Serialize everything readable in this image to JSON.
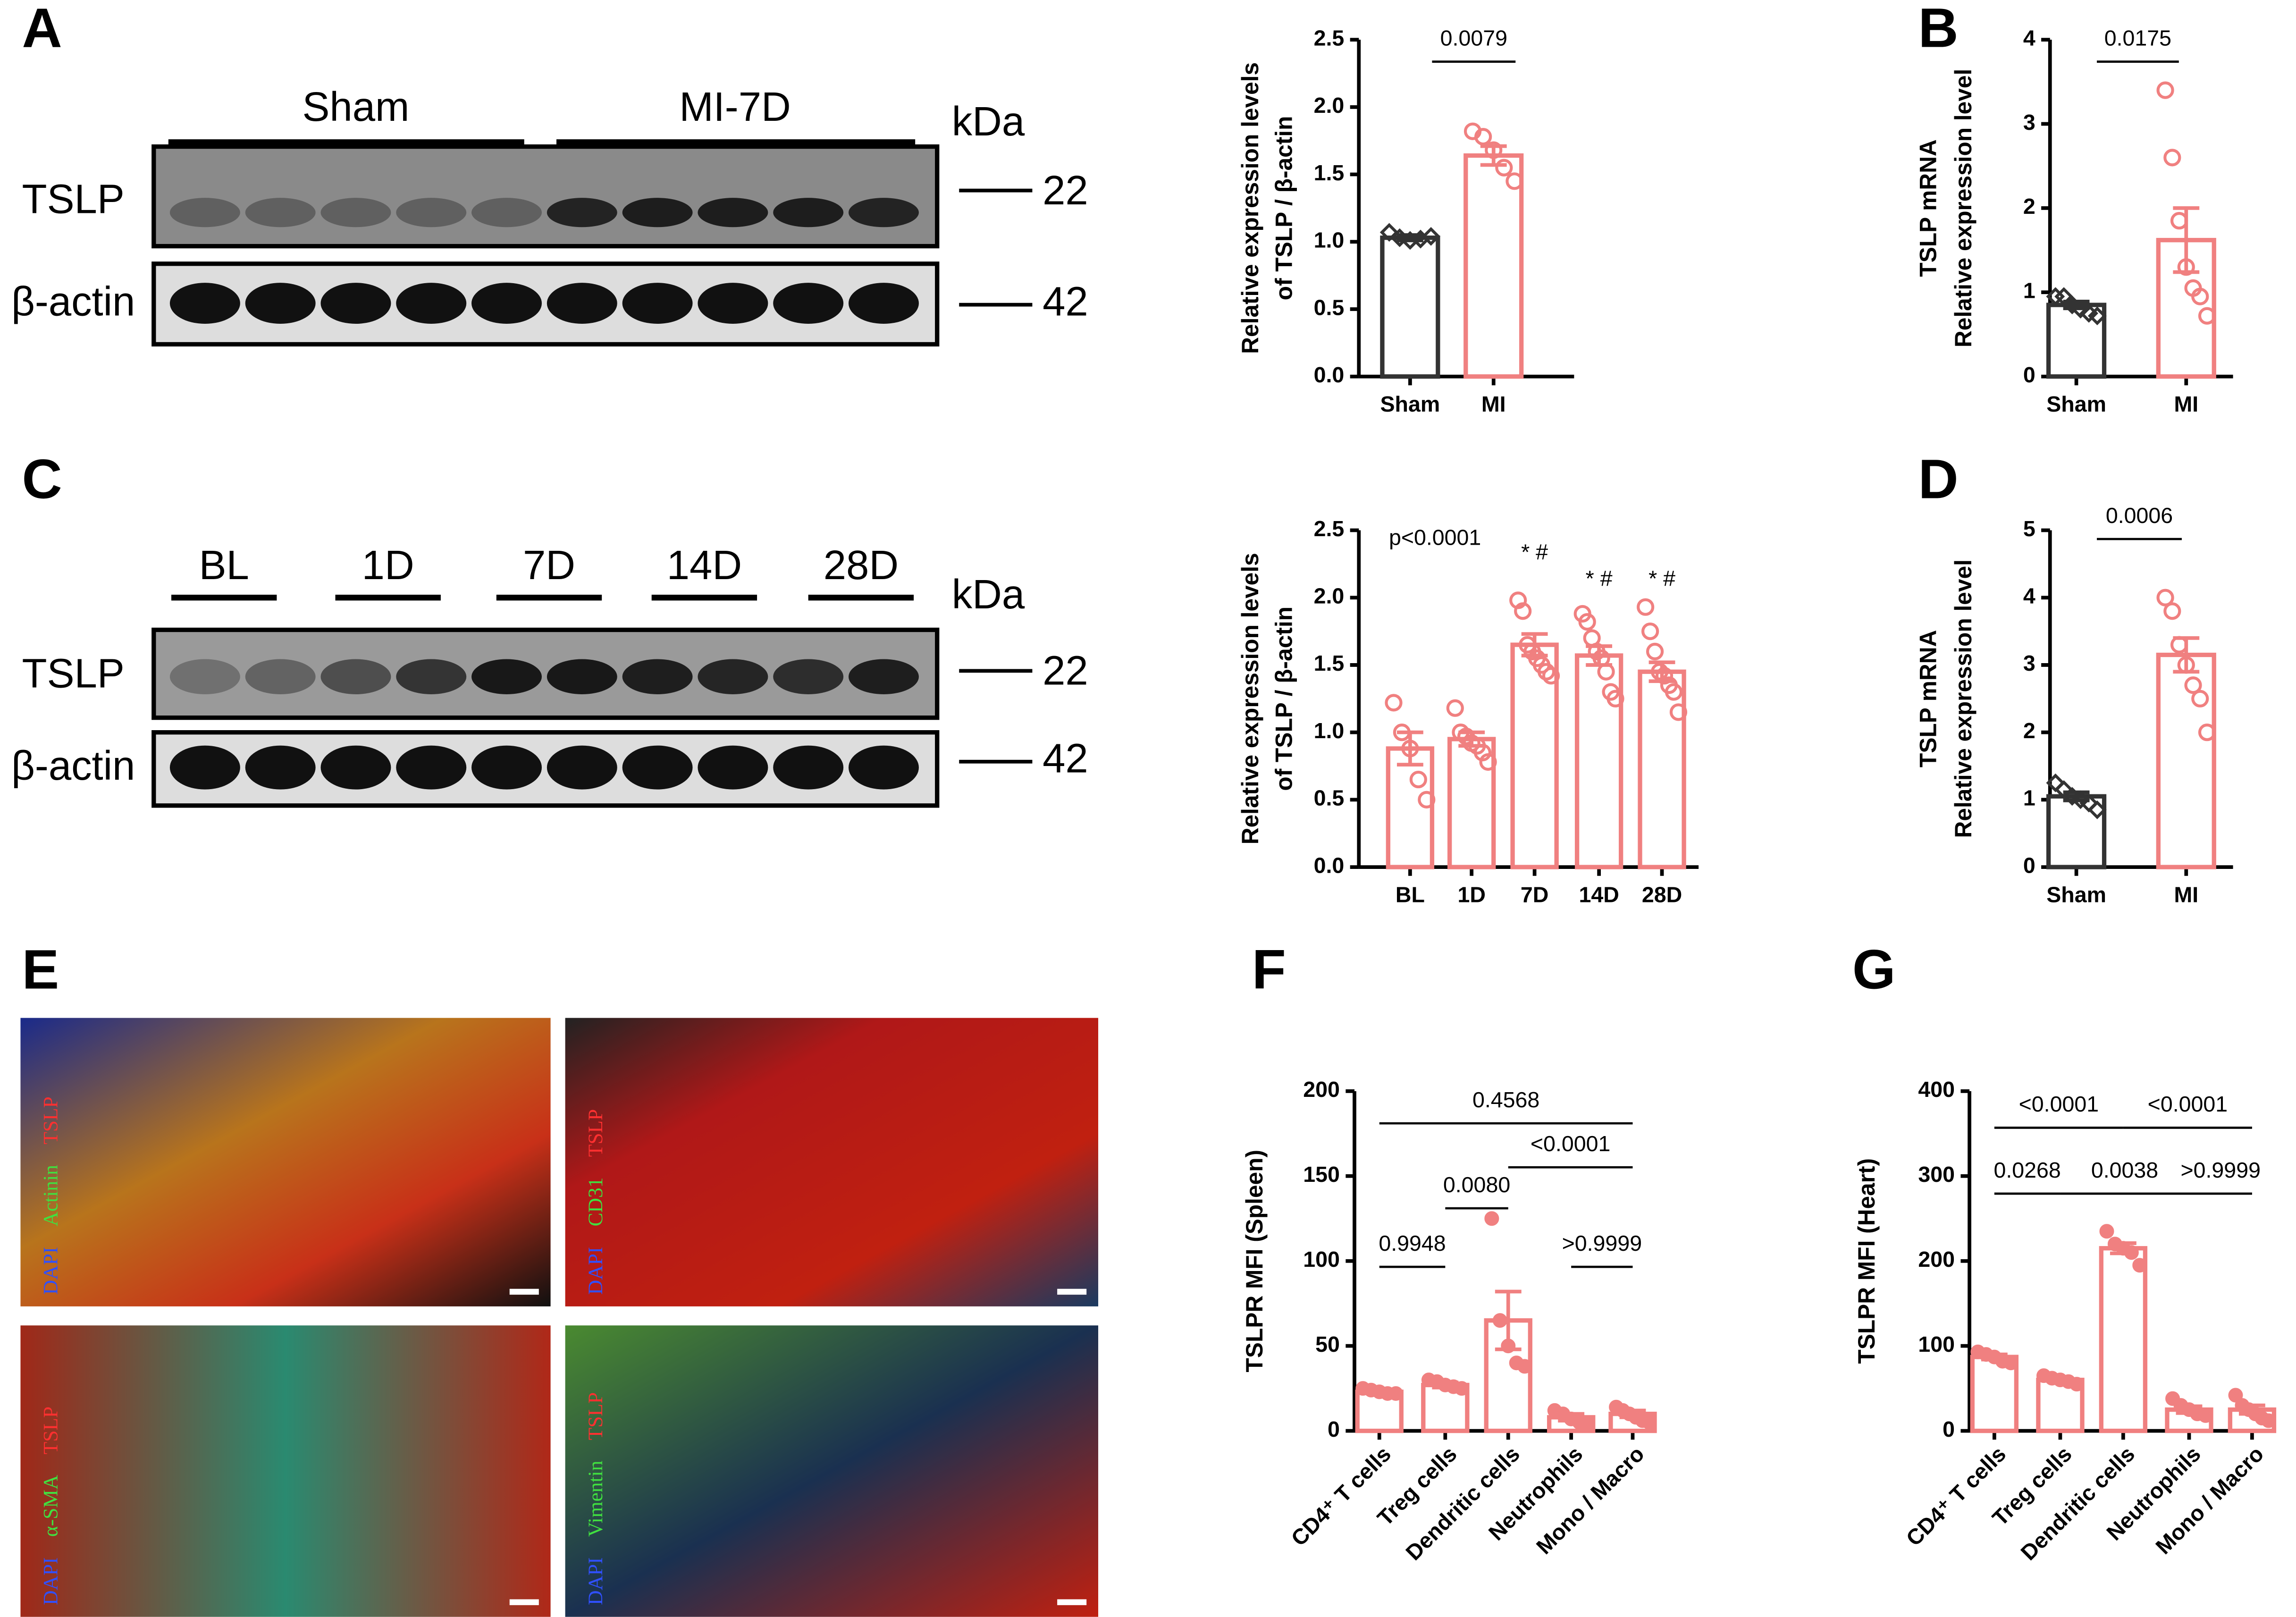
{
  "panels": [
    "A",
    "B",
    "C",
    "D",
    "E",
    "F",
    "G"
  ],
  "blot_a": {
    "groups": [
      "Sham",
      "MI-7D"
    ],
    "unit": "kDa",
    "rows": [
      {
        "protein": "TSLP",
        "size": "22"
      },
      {
        "protein": "β-actin",
        "size": "42"
      }
    ]
  },
  "blot_c": {
    "groups": [
      "BL",
      "1D",
      "7D",
      "14D",
      "28D"
    ],
    "unit": "kDa",
    "rows": [
      {
        "protein": "TSLP",
        "size": "22"
      },
      {
        "protein": "β-actin",
        "size": "42"
      }
    ]
  },
  "if_images": [
    {
      "labels": [
        "DAPI",
        "Actinin",
        "TSLP"
      ]
    },
    {
      "labels": [
        "DAPI",
        "CD31",
        "TSLP"
      ]
    },
    {
      "labels": [
        "DAPI",
        "α-SMA",
        "TSLP"
      ]
    },
    {
      "labels": [
        "DAPI",
        "Vimentin",
        "TSLP"
      ]
    }
  ],
  "chart_data": [
    {
      "type": "bar",
      "ylabel": [
        "Relative expression levels",
        "of TSLP / β-actin"
      ],
      "categories": [
        "Sham",
        "MI"
      ],
      "colors": [
        "#333333",
        "#f08080"
      ],
      "values": [
        1.03,
        1.64
      ],
      "errors": [
        0.02,
        0.07
      ],
      "points": [
        [
          1.07,
          1.03,
          1.01,
          1.02,
          1.04
        ],
        [
          1.82,
          1.78,
          1.68,
          1.55,
          1.45
        ]
      ],
      "ylim": [
        0,
        2.5
      ],
      "yticks": [
        {
          "value": 0,
          "label": "0.0"
        },
        0.5,
        {
          "value": 1,
          "label": "1.0"
        },
        1.5,
        {
          "value": 2,
          "label": "2.0"
        },
        2.5
      ],
      "annotations": [
        "0.0079"
      ]
    },
    {
      "type": "bar",
      "ylabel": [
        "TSLP mRNA",
        "Relative expression level"
      ],
      "categories": [
        "Sham",
        "MI"
      ],
      "colors": [
        "#333333",
        "#f08080"
      ],
      "values": [
        0.85,
        1.62
      ],
      "errors": [
        0.04,
        0.38
      ],
      "points": [
        [
          0.95,
          0.95,
          0.85,
          0.8,
          0.75,
          0.72
        ],
        [
          3.4,
          2.6,
          1.85,
          1.3,
          1.05,
          0.95,
          0.72
        ]
      ],
      "ylim": [
        0,
        4
      ],
      "yticks": [
        0,
        1,
        2,
        3,
        4
      ],
      "annotations": [
        "0.0175"
      ]
    },
    {
      "type": "bar",
      "ylabel": [
        "Relative expression levels",
        "of TSLP / β-actin"
      ],
      "categories": [
        "BL",
        "1D",
        "7D",
        "14D",
        "28D"
      ],
      "colors": [
        "#f08080",
        "#f08080",
        "#f08080",
        "#f08080",
        "#f08080"
      ],
      "values": [
        0.88,
        0.95,
        1.65,
        1.57,
        1.45
      ],
      "errors": [
        0.12,
        0.05,
        0.08,
        0.07,
        0.07
      ],
      "points": [
        [
          1.22,
          1.0,
          0.88,
          0.65,
          0.5
        ],
        [
          1.18,
          1.0,
          0.97,
          0.92,
          0.9,
          0.85,
          0.78
        ],
        [
          1.98,
          1.9,
          1.65,
          1.6,
          1.55,
          1.5,
          1.45,
          1.42
        ],
        [
          1.88,
          1.82,
          1.7,
          1.6,
          1.55,
          1.45,
          1.3,
          1.25
        ],
        [
          1.93,
          1.75,
          1.6,
          1.45,
          1.42,
          1.35,
          1.3,
          1.15
        ]
      ],
      "ylim": [
        0,
        2.5
      ],
      "yticks": [
        {
          "value": 0,
          "label": "0.0"
        },
        0.5,
        {
          "value": 1,
          "label": "1.0"
        },
        1.5,
        {
          "value": 2,
          "label": "2.0"
        },
        2.5
      ],
      "annotations": [
        "p<0.0001",
        "* #",
        "* #",
        "* #"
      ]
    },
    {
      "type": "bar",
      "ylabel": [
        "TSLP mRNA",
        "Relative expression level"
      ],
      "categories": [
        "Sham",
        "MI"
      ],
      "colors": [
        "#333333",
        "#f08080"
      ],
      "values": [
        1.05,
        3.15
      ],
      "errors": [
        0.06,
        0.25
      ],
      "points": [
        [
          1.25,
          1.15,
          1.05,
          1.0,
          0.95,
          0.85
        ],
        [
          4.0,
          3.8,
          3.3,
          3.0,
          2.7,
          2.5,
          2.0
        ]
      ],
      "ylim": [
        0,
        5
      ],
      "yticks": [
        0,
        1,
        2,
        3,
        4,
        5
      ],
      "annotations": [
        "0.0006"
      ]
    },
    {
      "type": "bar",
      "ylabel": [
        "TSLPR  MFI (Spleen)"
      ],
      "categories": [
        "CD4⁺ T cells",
        "Treg cells",
        "Dendritic cells",
        "Neutrophils",
        "Mono / Macro"
      ],
      "colors": [
        "#f08080",
        "#f08080",
        "#f08080",
        "#f08080",
        "#f08080"
      ],
      "values": [
        23,
        27,
        65,
        8,
        10
      ],
      "errors": [
        1,
        1.5,
        17,
        2,
        2
      ],
      "points": [
        [
          25,
          24,
          23,
          22,
          22
        ],
        [
          30,
          29,
          27,
          26,
          25
        ],
        [
          125,
          65,
          50,
          40,
          38
        ],
        [
          12,
          10,
          7,
          5,
          4
        ],
        [
          14,
          12,
          10,
          8,
          6,
          5
        ]
      ],
      "ylim": [
        0,
        200
      ],
      "yticks": [
        0,
        50,
        100,
        150,
        200
      ],
      "annotations": [
        "0.4568",
        "0.9948",
        "0.0080",
        "<0.0001",
        ">0.9999"
      ]
    },
    {
      "type": "bar",
      "ylabel": [
        "TSLPR  MFI (Heart)"
      ],
      "categories": [
        "CD4⁺ T cells",
        "Treg cells",
        "Dendritic cells",
        "Neutrophils",
        "Mono / Macro"
      ],
      "colors": [
        "#f08080",
        "#f08080",
        "#f08080",
        "#f08080",
        "#f08080"
      ],
      "values": [
        87,
        60,
        215,
        25,
        25
      ],
      "errors": [
        3,
        2,
        6,
        4,
        5
      ],
      "points": [
        [
          93,
          90,
          87,
          82,
          80
        ],
        [
          65,
          62,
          60,
          58,
          55
        ],
        [
          235,
          220,
          215,
          210,
          195
        ],
        [
          38,
          30,
          25,
          20,
          18
        ],
        [
          42,
          30,
          25,
          20,
          15,
          12
        ]
      ],
      "ylim": [
        0,
        400
      ],
      "yticks": [
        0,
        100,
        200,
        300,
        400
      ],
      "annotations": [
        "<0.0001",
        "<0.0001",
        "0.0268",
        "0.0038",
        ">0.9999"
      ]
    }
  ]
}
